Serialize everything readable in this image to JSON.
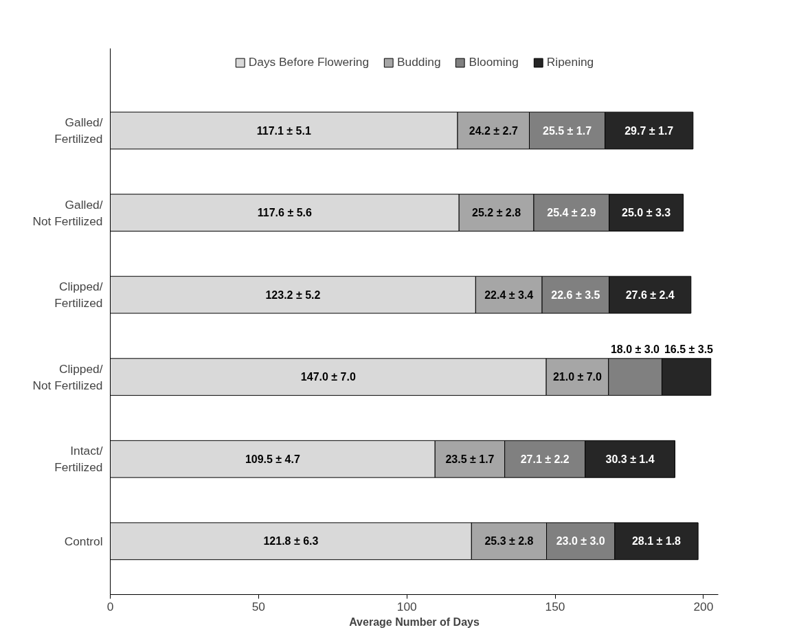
{
  "chart_data": {
    "type": "bar",
    "orientation": "horizontal",
    "stacked": true,
    "xlabel": "Average Number of Days",
    "categories": [
      "Galled/ Fertilized",
      "Galled/ Not Fertilized",
      "Clipped/ Fertilized",
      "Clipped/ Not Fertilized",
      "Intact/ Fertilized",
      "Control"
    ],
    "series": [
      {
        "name": "Days Before Flowering",
        "color": "#d9d9d9",
        "values": [
          117.1,
          117.6,
          123.2,
          147.0,
          109.5,
          121.8
        ],
        "value_labels": [
          "117.1 ± 5.1",
          "117.6 ± 5.6",
          "123.2 ± 5.2",
          "147.0 ± 7.0",
          "109.5 ± 4.7",
          "121.8 ± 6.3"
        ]
      },
      {
        "name": "Budding",
        "color": "#a6a6a6",
        "values": [
          24.2,
          25.2,
          22.4,
          21.0,
          23.5,
          25.3
        ],
        "value_labels": [
          "24.2 ± 2.7",
          "25.2 ± 2.8",
          "22.4 ± 3.4",
          "21.0 ± 7.0",
          "23.5 ± 1.7",
          "25.3 ± 2.8"
        ]
      },
      {
        "name": "Blooming",
        "color": "#808080",
        "values": [
          25.5,
          25.4,
          22.6,
          18.0,
          27.1,
          23.0
        ],
        "value_labels": [
          "25.5 ± 1.7",
          "25.4 ± 2.9",
          "22.6 ± 3.5",
          "18.0 ± 3.0",
          "27.1 ± 2.2",
          "23.0 ± 3.0"
        ]
      },
      {
        "name": "Ripening",
        "color": "#262626",
        "values": [
          29.7,
          25.0,
          27.6,
          16.5,
          30.3,
          28.1
        ],
        "value_labels": [
          "29.7 ± 1.7",
          "25.0 ± 3.3",
          "27.6 ± 2.4",
          "16.5 ± 3.5",
          "30.3 ± 1.4",
          "28.1 ± 1.8"
        ]
      }
    ],
    "xlim": [
      0,
      205
    ],
    "xticks": [
      0,
      50,
      100,
      150,
      200
    ],
    "grid": false,
    "legend": "top"
  }
}
